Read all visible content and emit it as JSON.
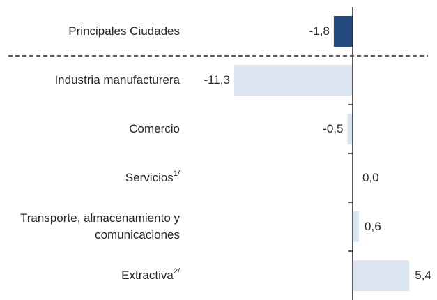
{
  "chart_data": {
    "type": "barh",
    "categories": [
      "Principales Ciudades",
      "Industria manufacturera",
      "Comercio",
      "Servicios",
      "Transporte, almacenamiento y comunicaciones",
      "Extractiva"
    ],
    "category_notes": [
      null,
      null,
      null,
      "1/",
      null,
      "2/"
    ],
    "values": [
      -1.8,
      -11.3,
      -0.5,
      0.0,
      0.6,
      5.4
    ],
    "value_labels": [
      "-1,8",
      "-11,3",
      "-0,5",
      "0,0",
      "0,6",
      "5,4"
    ],
    "colors": [
      "#254a7e",
      "#dce6f2",
      "#dce6f2",
      "#dce6f2",
      "#dce6f2",
      "#dce6f2"
    ]
  }
}
